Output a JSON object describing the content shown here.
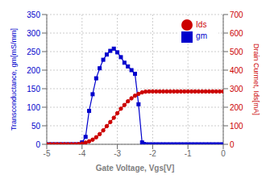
{
  "chart_data": {
    "type": "line",
    "xlabel": "Gate Voltage, Vgs[V]",
    "ylabel": "Transconductance, gm[mS/mm]",
    "y2label": "Drain Curmet, Ids[mA]",
    "xlim": [
      -5,
      0
    ],
    "xticks": [
      -5,
      -4,
      -3,
      -2,
      -1,
      0
    ],
    "ylim": [
      0,
      350
    ],
    "yticks": [
      0,
      50,
      100,
      150,
      200,
      250,
      300,
      350
    ],
    "y2lim": [
      0,
      700
    ],
    "y2ticks": [
      0,
      100,
      200,
      300,
      400,
      500,
      600,
      700
    ],
    "grid": true,
    "legend": "upper right",
    "series": [
      {
        "name": "gm",
        "color": "#0000cc",
        "marker": "square",
        "x": [
          -5.0,
          -4.9,
          -4.8,
          -4.7,
          -4.6,
          -4.5,
          -4.4,
          -4.3,
          -4.2,
          -4.1,
          -4.0,
          -3.9,
          -3.8,
          -3.7,
          -3.6,
          -3.5,
          -3.4,
          -3.3,
          -3.2,
          -3.1,
          -3.0,
          -2.9,
          -2.8,
          -2.7,
          -2.6,
          -2.5,
          -2.4,
          -2.3,
          -2.25,
          -2.2,
          -2.1,
          -2.0,
          -1.9,
          -1.8,
          -1.7,
          -1.6,
          -1.5,
          -1.4,
          -1.3,
          -1.2,
          -1.1,
          -1.0,
          -0.9,
          -0.8,
          -0.7,
          -0.6,
          -0.5,
          -0.4,
          -0.3,
          -0.2,
          -0.1,
          0.0
        ],
        "values": [
          0,
          0,
          0,
          0,
          0,
          0,
          0,
          0,
          0,
          0,
          5,
          20,
          90,
          135,
          178,
          205,
          228,
          242,
          252,
          258,
          248,
          235,
          220,
          210,
          200,
          190,
          108,
          5,
          1,
          0,
          0,
          0,
          0,
          0,
          0,
          0,
          0,
          0,
          0,
          0,
          0,
          0,
          0,
          0,
          0,
          0,
          0,
          0,
          0,
          0,
          0,
          0
        ]
      },
      {
        "name": "Ids",
        "color": "#cc0000",
        "marker": "circle",
        "axis": "y2",
        "x": [
          -5.0,
          -4.9,
          -4.8,
          -4.7,
          -4.6,
          -4.5,
          -4.4,
          -4.3,
          -4.2,
          -4.1,
          -4.0,
          -3.9,
          -3.8,
          -3.7,
          -3.6,
          -3.5,
          -3.4,
          -3.3,
          -3.2,
          -3.1,
          -3.0,
          -2.9,
          -2.8,
          -2.7,
          -2.6,
          -2.5,
          -2.4,
          -2.3,
          -2.2,
          -2.1,
          -2.0,
          -1.9,
          -1.8,
          -1.7,
          -1.6,
          -1.5,
          -1.4,
          -1.3,
          -1.2,
          -1.1,
          -1.0,
          -0.9,
          -0.8,
          -0.7,
          -0.6,
          -0.5,
          -0.4,
          -0.3,
          -0.2,
          -0.1,
          0.0
        ],
        "values": [
          0,
          0,
          0,
          0,
          0,
          0,
          0,
          0,
          0,
          1,
          4,
          9,
          16,
          25,
          38,
          55,
          75,
          98,
          120,
          143,
          168,
          192,
          212,
          232,
          248,
          262,
          272,
          280,
          284,
          285,
          285,
          285,
          285,
          285,
          285,
          285,
          285,
          285,
          285,
          285,
          285,
          285,
          285,
          285,
          285,
          285,
          285,
          285,
          285,
          285,
          285
        ]
      }
    ]
  }
}
